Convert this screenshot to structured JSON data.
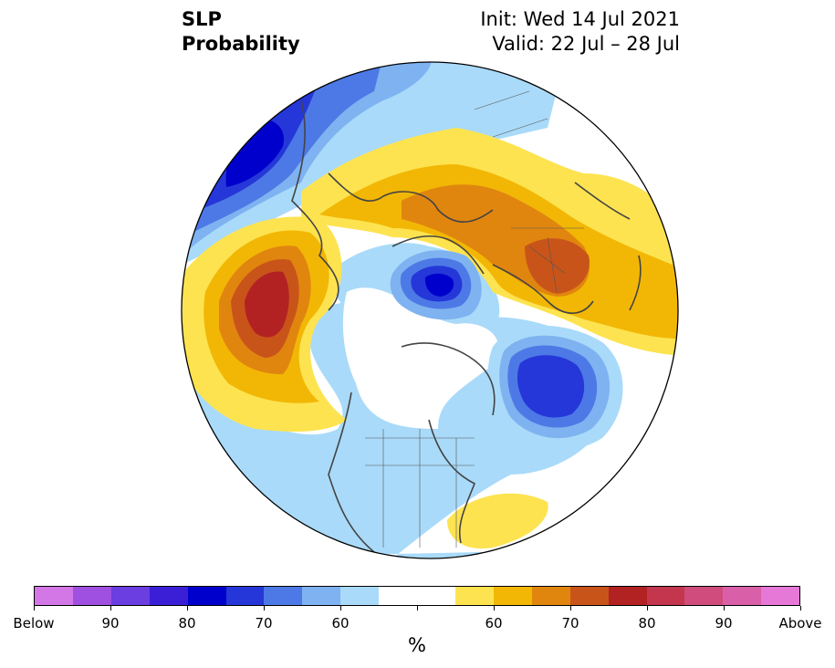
{
  "title": {
    "left_line1": "SLP",
    "left_line2": "Probability",
    "right_line1": "Init: Wed 14 Jul 2021",
    "right_line2": "Valid: 22 Jul – 28 Jul"
  },
  "colorbar": {
    "colors": [
      "#d477e6",
      "#a050e0",
      "#6a3ee0",
      "#3b1fd6",
      "#0000cc",
      "#2537d8",
      "#4d79e6",
      "#7fb2f0",
      "#a9daf9",
      "#ffffff",
      "#ffffff",
      "#fde350",
      "#f2b705",
      "#e0860f",
      "#c9541a",
      "#b22222",
      "#c3364e",
      "#cf4c7c",
      "#d960a8",
      "#e678d8"
    ],
    "tick_labels": [
      "Below",
      "90",
      "80",
      "70",
      "60",
      "60",
      "70",
      "80",
      "90",
      "Above"
    ],
    "unit": "%"
  },
  "map": {
    "projection": "north polar stereographic",
    "variable": "SLP probability"
  }
}
